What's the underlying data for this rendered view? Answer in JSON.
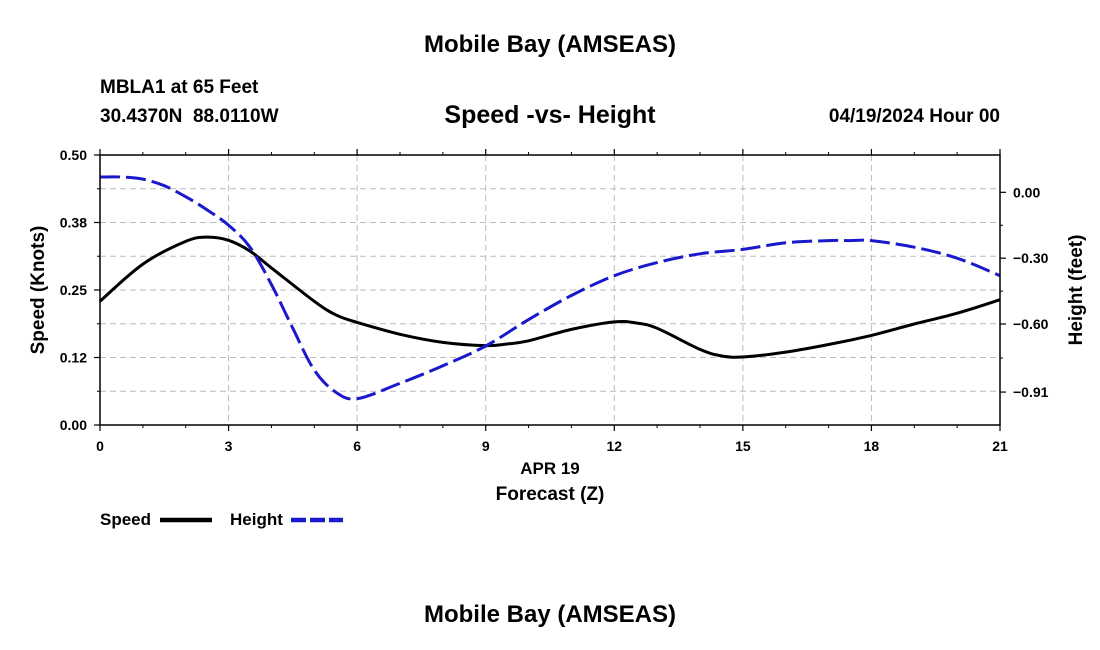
{
  "header": {
    "title": "Mobile Bay (AMSEAS)",
    "station": "MBLA1 at 65 Feet",
    "coords": "30.4370N  88.0110W",
    "subtitle": "Speed -vs- Height",
    "datetime": "04/19/2024 Hour 00"
  },
  "footer": {
    "title": "Mobile Bay (AMSEAS)"
  },
  "colors": {
    "speed": "#000000",
    "height": "#1a1acc",
    "grid": "#bbbbbb"
  },
  "chart_data": {
    "type": "line",
    "title": "Speed -vs- Height",
    "x_label_date": "APR 19",
    "xlabel": "Forecast (Z)",
    "ylabel_left": "Speed (Knots)",
    "ylabel_right": "Height (feet)",
    "xlim": [
      0,
      21
    ],
    "ylim_left": [
      0,
      0.5
    ],
    "ylim_right": [
      -1.06,
      0.17
    ],
    "x_ticks": [
      0,
      3,
      6,
      9,
      12,
      15,
      18,
      21
    ],
    "x_tick_labels": [
      "0",
      "3",
      "6",
      "9",
      "12",
      "15",
      "18",
      "21"
    ],
    "y_left_ticks": [
      0.0,
      0.125,
      0.25,
      0.375,
      0.5
    ],
    "y_left_tick_labels": [
      "0.00",
      "0.12",
      "0.25",
      "0.38",
      "0.50"
    ],
    "y_right_ticks": [
      0.0,
      -0.3,
      -0.6,
      -0.91
    ],
    "y_right_tick_labels": [
      "0.00",
      "−0.30",
      "−0.60",
      "−0.91"
    ],
    "legend": [
      {
        "label": "Speed",
        "series": "speed"
      },
      {
        "label": "Height",
        "series": "height"
      }
    ],
    "series": [
      {
        "name": "Speed",
        "axis": "left",
        "style": "solid",
        "x": [
          0,
          1,
          2,
          2.5,
          3,
          3.5,
          4,
          5,
          5.5,
          6,
          7,
          8,
          9,
          9.5,
          10,
          11,
          12,
          12.5,
          13,
          14,
          14.5,
          15,
          16,
          17,
          18,
          19,
          20,
          21
        ],
        "values": [
          0.229,
          0.298,
          0.34,
          0.348,
          0.342,
          0.322,
          0.291,
          0.229,
          0.204,
          0.19,
          0.168,
          0.153,
          0.147,
          0.15,
          0.156,
          0.177,
          0.191,
          0.189,
          0.179,
          0.14,
          0.128,
          0.126,
          0.135,
          0.149,
          0.166,
          0.187,
          0.207,
          0.232
        ]
      },
      {
        "name": "Height",
        "axis": "right",
        "style": "dashed",
        "x": [
          0,
          0.5,
          1,
          1.5,
          2,
          2.5,
          3,
          3.5,
          4,
          4.5,
          5,
          5.5,
          6,
          7,
          8,
          9,
          10,
          11,
          12,
          13,
          14,
          15,
          16,
          17,
          17.5,
          18,
          19,
          20,
          21
        ],
        "values": [
          0.07,
          0.07,
          0.06,
          0.03,
          -0.02,
          -0.08,
          -0.15,
          -0.25,
          -0.42,
          -0.62,
          -0.81,
          -0.91,
          -0.94,
          -0.87,
          -0.79,
          -0.7,
          -0.58,
          -0.47,
          -0.38,
          -0.32,
          -0.28,
          -0.26,
          -0.23,
          -0.22,
          -0.22,
          -0.22,
          -0.25,
          -0.3,
          -0.38
        ]
      }
    ]
  }
}
